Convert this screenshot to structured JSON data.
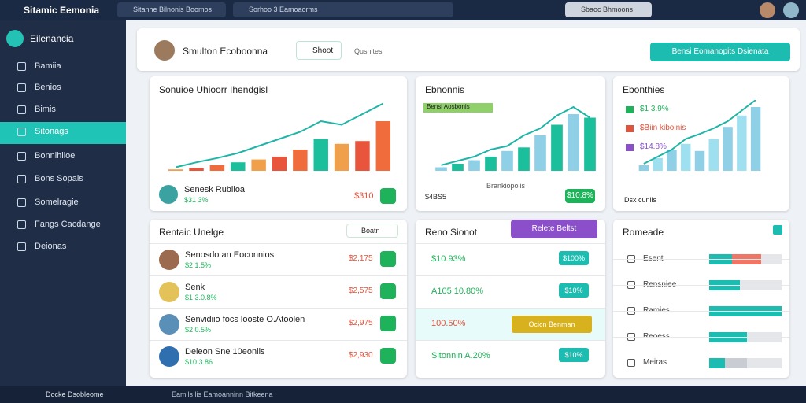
{
  "topbar": {
    "title": "Sitamic Eemonia",
    "search1": "Sitanhe Bilnonis Boomos",
    "search2": "Sorhoo 3 Eamoaorms",
    "search3": "Sbaoc Bhmoons"
  },
  "sidebar": {
    "brand": "Eilenancia",
    "items": [
      "Bamiia",
      "Benios",
      "Bimis",
      "Sitonags",
      "Bonnihiloe",
      "Bons Sopais",
      "Somelragie",
      "Fangs Cacdange",
      "Deionas"
    ]
  },
  "header": {
    "name": "Smulton Ecoboonna",
    "button": "Shoot",
    "search": "Qusnites",
    "action": "Bensi Eomanopits  Dsienata"
  },
  "card1": {
    "title": "Sonuioe Uhioorr Ihendgisl",
    "person": "Senesk Rubiloa",
    "change": "$31 3%",
    "value": "$310"
  },
  "card2": {
    "title": "Ebnonnis",
    "legend1": "Bensi Aosbonis",
    "legend2": "Brankiopolis",
    "footer": "$4BS5",
    "button": "$10.8%"
  },
  "card3": {
    "title": "Ebonthies",
    "legend": [
      "$1 3.9%",
      "$Biin kiboinis",
      "$14.8%"
    ],
    "footer": "Dsx cunils"
  },
  "card4": {
    "title": "Rentaic Unelge",
    "button": "Boatn",
    "rows": [
      {
        "name": "Senosdo an Eoconnios",
        "change": "$2 1.5%",
        "value": "$2,175"
      },
      {
        "name": "Senk",
        "change": "$1 3.0.8%",
        "value": "$2,575"
      },
      {
        "name": "Senvidiio focs looste O.Atoolen",
        "change": "$2 0.5%",
        "value": "$2,975"
      },
      {
        "name": "Deleon Sne 10eoniis",
        "change": "$10 3.86",
        "value": "$2,930"
      }
    ]
  },
  "card5": {
    "title": "Reno Sionot",
    "button": "Relete Beltst",
    "rows": [
      {
        "label": "$10.93%",
        "button": "$100%"
      },
      {
        "label": "A105 10.80%",
        "button": "$10%"
      },
      {
        "label": "100.50%",
        "button": "Ocicn Benman"
      },
      {
        "label": "Sitonnin A.20%",
        "button": "$10%"
      }
    ]
  },
  "card6": {
    "title": "Romeade",
    "rows": [
      "Esent",
      "Rensniee",
      "Ramies",
      "Reoess",
      "Meiras"
    ]
  },
  "taskbar": {
    "app": "Docke Dsobleome",
    "status": "Eamils lis Eamoanninn Bitkeena"
  }
}
